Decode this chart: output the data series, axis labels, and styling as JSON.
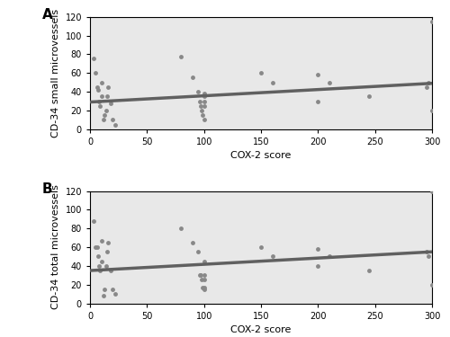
{
  "panel_A_label": "A",
  "panel_B_label": "B",
  "xlabel": "COX-2 score",
  "ylabel_A": "CD-34 small microvessels",
  "ylabel_B": "CD-34 total microvessels",
  "xlim": [
    0,
    300
  ],
  "ylim": [
    0,
    120
  ],
  "yticks": [
    0,
    20,
    40,
    60,
    80,
    100,
    120
  ],
  "xticks": [
    0,
    50,
    100,
    150,
    200,
    250,
    300
  ],
  "scatter_color": "#888888",
  "line_color": "#606060",
  "bg_color": "#e8e8e8",
  "fig_bg_color": "#ffffff",
  "scatter_A_x": [
    3,
    5,
    6,
    7,
    8,
    9,
    10,
    10,
    12,
    13,
    14,
    15,
    16,
    18,
    20,
    22,
    80,
    90,
    95,
    96,
    97,
    98,
    99,
    100,
    100,
    100,
    100,
    100,
    150,
    160,
    200,
    200,
    210,
    245,
    295,
    297,
    300,
    300
  ],
  "scatter_A_y": [
    76,
    60,
    45,
    42,
    30,
    25,
    35,
    50,
    10,
    15,
    20,
    35,
    45,
    28,
    10,
    5,
    78,
    55,
    40,
    30,
    25,
    20,
    15,
    38,
    10,
    35,
    30,
    25,
    60,
    50,
    58,
    30,
    50,
    35,
    45,
    50,
    115,
    20
  ],
  "scatter_B_x": [
    3,
    5,
    6,
    7,
    8,
    9,
    10,
    10,
    12,
    13,
    14,
    15,
    16,
    18,
    20,
    22,
    80,
    90,
    95,
    96,
    97,
    98,
    99,
    100,
    100,
    100,
    100,
    100,
    150,
    160,
    200,
    200,
    210,
    245,
    295,
    297,
    300,
    300
  ],
  "scatter_B_y": [
    88,
    60,
    60,
    50,
    40,
    35,
    45,
    67,
    8,
    15,
    40,
    55,
    65,
    35,
    15,
    10,
    80,
    65,
    55,
    30,
    30,
    25,
    17,
    45,
    15,
    30,
    25,
    17,
    60,
    50,
    58,
    40,
    50,
    35,
    55,
    50,
    120,
    20
  ],
  "line_A_x0": 0,
  "line_A_y0": 29,
  "line_A_x1": 300,
  "line_A_y1": 49,
  "line_B_x0": 0,
  "line_B_y0": 35,
  "line_B_x1": 300,
  "line_B_y1": 55,
  "line_width": 2.5,
  "marker_size": 3.5,
  "tick_fontsize": 7,
  "label_fontsize": 8,
  "panel_label_fontsize": 11
}
